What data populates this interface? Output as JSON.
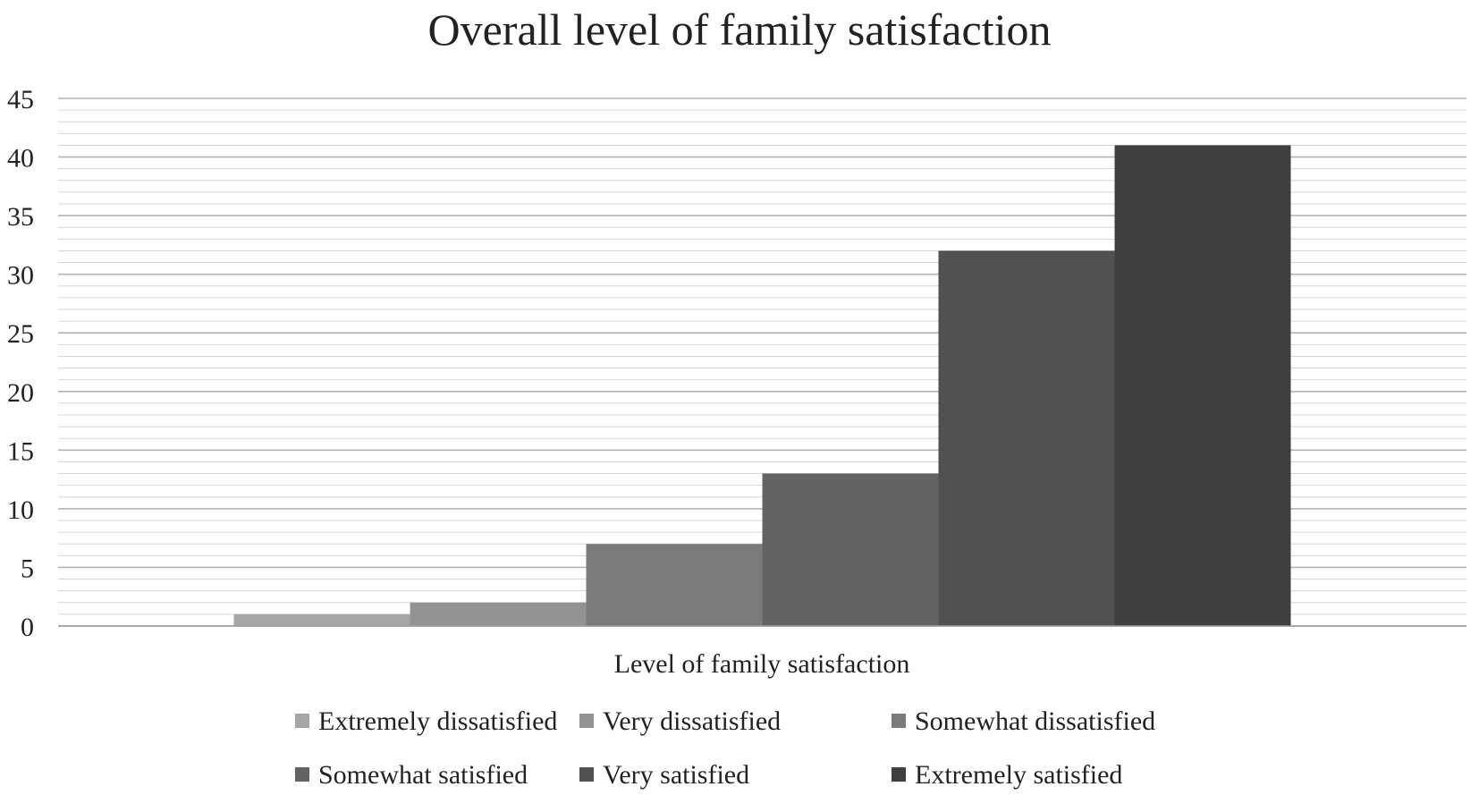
{
  "chart_data": {
    "type": "bar",
    "title": "Overall level of family satisfaction",
    "xlabel": "Level of family satisfaction",
    "ylabel": "",
    "ylim": [
      0,
      45
    ],
    "yticks": [
      0,
      5,
      10,
      15,
      20,
      25,
      30,
      35,
      40,
      45
    ],
    "grid": true,
    "legend_position": "bottom",
    "categories": [
      "Level of family satisfaction"
    ],
    "series": [
      {
        "name": "Extremely dissatisfied",
        "values": [
          1
        ],
        "color": "#a6a6a6"
      },
      {
        "name": "Very dissatisfied",
        "values": [
          2
        ],
        "color": "#939393"
      },
      {
        "name": "Somewhat dissatisfied",
        "values": [
          7
        ],
        "color": "#7a7a7a"
      },
      {
        "name": "Somewhat satisfied",
        "values": [
          13
        ],
        "color": "#636363"
      },
      {
        "name": "Very satisfied",
        "values": [
          32
        ],
        "color": "#515151"
      },
      {
        "name": "Extremely satisfied",
        "values": [
          41
        ],
        "color": "#3f3f3f"
      }
    ]
  }
}
